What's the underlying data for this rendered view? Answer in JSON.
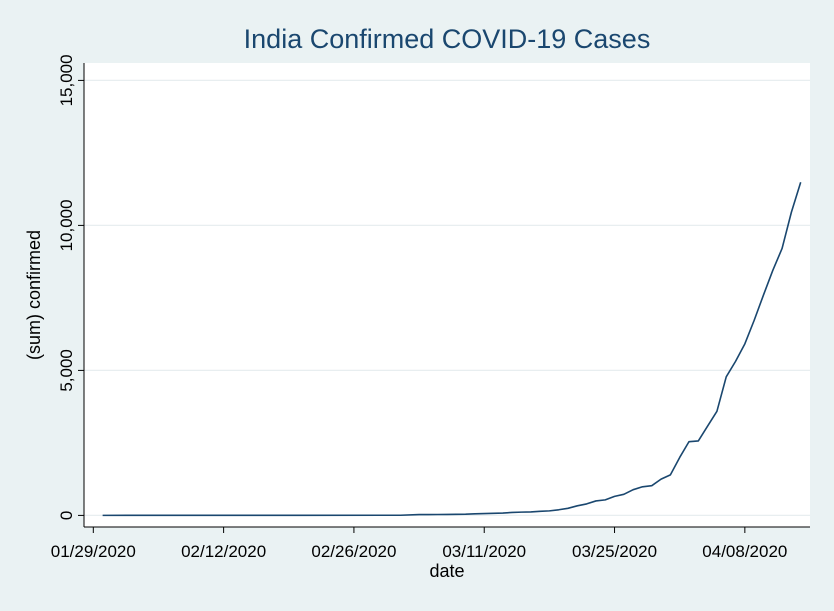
{
  "chart_data": {
    "type": "line",
    "title": "India Confirmed COVID-19 Cases",
    "xlabel": "date",
    "ylabel": "(sum) confirmed",
    "x_ticks": [
      "01/29/2020",
      "02/12/2020",
      "02/26/2020",
      "03/11/2020",
      "03/25/2020",
      "04/08/2020"
    ],
    "y_ticks": [
      0,
      5000,
      10000,
      15000
    ],
    "y_tick_labels": [
      "0",
      "5,000",
      "10,000",
      "15,000"
    ],
    "xlim": [
      "01/28/2020",
      "04/15/2020"
    ],
    "ylim": [
      -400,
      15600
    ],
    "grid": "horizontal",
    "legend": "none",
    "colors": {
      "line": "#1a476f",
      "plot_bg": "#ffffff",
      "outer_bg": "#eaf2f3",
      "grid": "#e8eef0"
    },
    "series": [
      {
        "x": [
          "01/30/2020",
          "02/02/2020",
          "02/03/2020",
          "02/13/2020",
          "02/20/2020",
          "03/02/2020",
          "03/04/2020",
          "03/05/2020",
          "03/06/2020",
          "03/07/2020",
          "03/08/2020",
          "03/09/2020",
          "03/10/2020",
          "03/11/2020",
          "03/12/2020",
          "03/13/2020",
          "03/14/2020",
          "03/15/2020",
          "03/16/2020",
          "03/17/2020",
          "03/18/2020",
          "03/19/2020",
          "03/20/2020",
          "03/21/2020",
          "03/22/2020",
          "03/23/2020",
          "03/24/2020",
          "03/25/2020",
          "03/26/2020",
          "03/27/2020",
          "03/28/2020",
          "03/29/2020",
          "03/30/2020",
          "03/31/2020",
          "04/01/2020",
          "04/02/2020",
          "04/03/2020",
          "04/04/2020",
          "04/05/2020",
          "04/06/2020",
          "04/07/2020",
          "04/08/2020",
          "04/09/2020",
          "04/10/2020",
          "04/11/2020",
          "04/12/2020",
          "04/13/2020",
          "04/14/2020"
        ],
        "y": [
          1,
          2,
          3,
          3,
          3,
          5,
          28,
          30,
          31,
          34,
          39,
          43,
          56,
          62,
          73,
          82,
          102,
          113,
          119,
          142,
          156,
          194,
          244,
          330,
          396,
          499,
          536,
          657,
          727,
          887,
          987,
          1024,
          1251,
          1397,
          1998,
          2543,
          2567,
          3082,
          3588,
          4778,
          5311,
          5916,
          6725,
          7598,
          8446,
          9205,
          10453,
          11487
        ]
      }
    ]
  }
}
